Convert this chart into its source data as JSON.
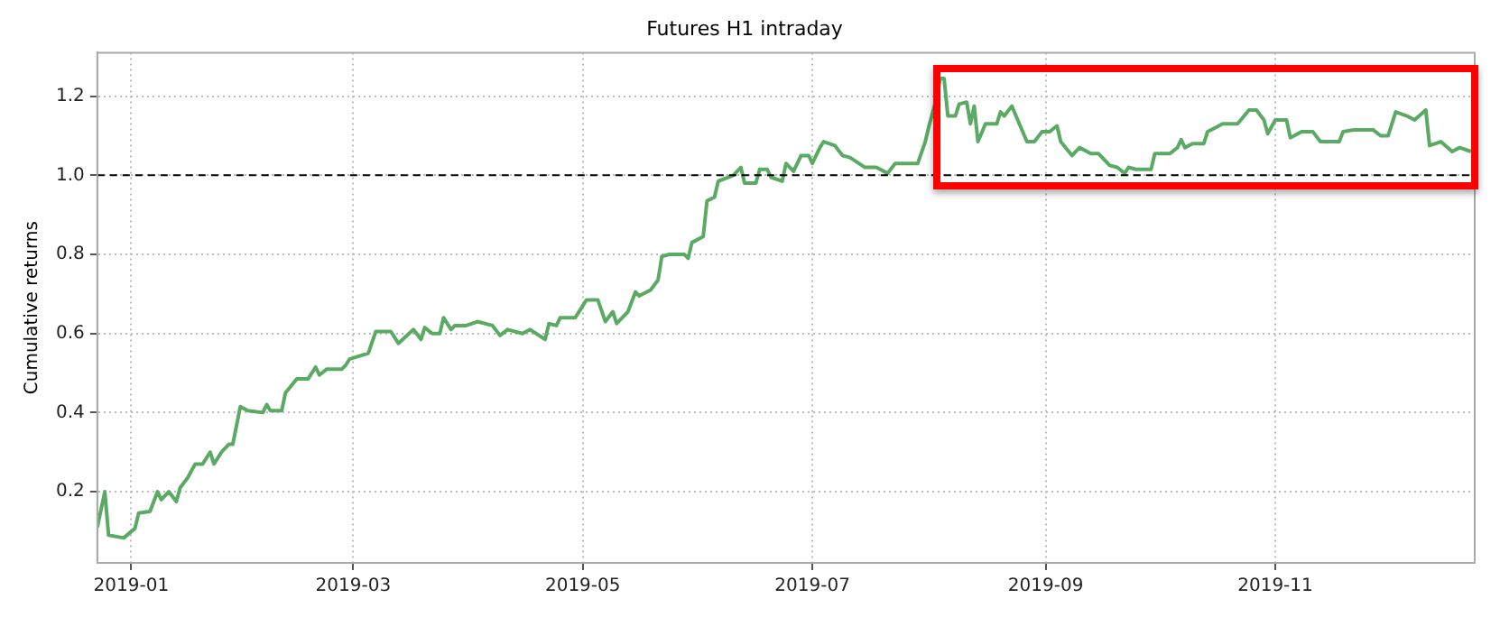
{
  "chart_data": {
    "type": "line",
    "title": "Futures H1 intraday",
    "ylabel": "Cumulative returns",
    "xlim": [
      "2018-12-23",
      "2019-12-24"
    ],
    "xticks": [
      "2019-01",
      "2019-03",
      "2019-05",
      "2019-07",
      "2019-09",
      "2019-11"
    ],
    "ylim": [
      0.02,
      1.31
    ],
    "yticks": [
      {
        "value": 0.2,
        "label": "0.2"
      },
      {
        "value": 0.4,
        "label": "0.4"
      },
      {
        "value": 0.6,
        "label": "0.6"
      },
      {
        "value": 0.8,
        "label": "0.8"
      },
      {
        "value": 1,
        "label": "1.0"
      },
      {
        "value": 1.2,
        "label": "1.2"
      }
    ],
    "grid": true,
    "marker": "none",
    "line_style": "solid",
    "ref_lines": [
      {
        "axis": "y",
        "value": 1.0,
        "label": null,
        "color": "#000000",
        "line_style": "dashed"
      }
    ],
    "x": [
      "2018-12-23",
      "2018-12-25",
      "2018-12-26",
      "2018-12-30",
      "2019-01-02",
      "2019-01-03",
      "2019-01-06",
      "2019-01-08",
      "2019-01-09",
      "2019-01-11",
      "2019-01-13",
      "2019-01-14",
      "2019-01-16",
      "2019-01-18",
      "2019-01-20",
      "2019-01-22",
      "2019-01-23",
      "2019-01-25",
      "2019-01-27",
      "2019-01-28",
      "2019-01-30",
      "2019-02-01",
      "2019-02-05",
      "2019-02-06",
      "2019-02-07",
      "2019-02-10",
      "2019-02-11",
      "2019-02-14",
      "2019-02-17",
      "2019-02-19",
      "2019-02-20",
      "2019-02-22",
      "2019-02-26",
      "2019-02-27",
      "2019-02-28",
      "2019-03-05",
      "2019-03-07",
      "2019-03-11",
      "2019-03-13",
      "2019-03-17",
      "2019-03-19",
      "2019-03-20",
      "2019-03-22",
      "2019-03-24",
      "2019-03-25",
      "2019-03-27",
      "2019-03-28",
      "2019-03-31",
      "2019-04-03",
      "2019-04-07",
      "2019-04-09",
      "2019-04-11",
      "2019-04-15",
      "2019-04-17",
      "2019-04-21",
      "2019-04-22",
      "2019-04-24",
      "2019-04-25",
      "2019-04-29",
      "2019-05-02",
      "2019-05-05",
      "2019-05-07",
      "2019-05-09",
      "2019-05-10",
      "2019-05-13",
      "2019-05-15",
      "2019-05-16",
      "2019-05-19",
      "2019-05-21",
      "2019-05-22",
      "2019-05-24",
      "2019-05-28",
      "2019-05-29",
      "2019-05-30",
      "2019-06-02",
      "2019-06-03",
      "2019-06-05",
      "2019-06-06",
      "2019-06-10",
      "2019-06-12",
      "2019-06-13",
      "2019-06-16",
      "2019-06-17",
      "2019-06-19",
      "2019-06-20",
      "2019-06-23",
      "2019-06-24",
      "2019-06-26",
      "2019-06-28",
      "2019-06-30",
      "2019-07-01",
      "2019-07-03",
      "2019-07-04",
      "2019-07-07",
      "2019-07-09",
      "2019-07-11",
      "2019-07-15",
      "2019-07-18",
      "2019-07-21",
      "2019-07-23",
      "2019-07-25",
      "2019-07-29",
      "2019-07-31",
      "2019-08-01",
      "2019-08-03",
      "2019-08-04",
      "2019-08-05",
      "2019-08-06",
      "2019-08-08",
      "2019-08-09",
      "2019-08-11",
      "2019-08-12",
      "2019-08-13",
      "2019-08-14",
      "2019-08-16",
      "2019-08-19",
      "2019-08-20",
      "2019-08-21",
      "2019-08-23",
      "2019-08-27",
      "2019-08-29",
      "2019-08-31",
      "2019-09-02",
      "2019-09-04",
      "2019-09-05",
      "2019-09-08",
      "2019-09-10",
      "2019-09-13",
      "2019-09-15",
      "2019-09-18",
      "2019-09-20",
      "2019-09-22",
      "2019-09-23",
      "2019-09-25",
      "2019-09-29",
      "2019-09-30",
      "2019-10-04",
      "2019-10-06",
      "2019-10-07",
      "2019-10-08",
      "2019-10-10",
      "2019-10-13",
      "2019-10-14",
      "2019-10-16",
      "2019-10-18",
      "2019-10-20",
      "2019-10-22",
      "2019-10-25",
      "2019-10-27",
      "2019-10-29",
      "2019-10-30",
      "2019-11-01",
      "2019-11-04",
      "2019-11-05",
      "2019-11-08",
      "2019-11-11",
      "2019-11-13",
      "2019-11-18",
      "2019-11-19",
      "2019-11-22",
      "2019-11-27",
      "2019-11-29",
      "2019-12-01",
      "2019-12-03",
      "2019-12-06",
      "2019-12-08",
      "2019-12-11",
      "2019-12-12",
      "2019-12-15",
      "2019-12-18",
      "2019-12-20",
      "2019-12-23"
    ],
    "series": [
      {
        "color": "#5aaa64",
        "values": [
          0.11,
          0.2,
          0.09,
          0.083,
          0.107,
          0.146,
          0.15,
          0.2,
          0.18,
          0.2,
          0.175,
          0.21,
          0.235,
          0.27,
          0.27,
          0.3,
          0.27,
          0.3,
          0.32,
          0.32,
          0.415,
          0.405,
          0.4,
          0.42,
          0.405,
          0.405,
          0.45,
          0.485,
          0.485,
          0.515,
          0.495,
          0.51,
          0.51,
          0.52,
          0.535,
          0.55,
          0.605,
          0.605,
          0.575,
          0.61,
          0.585,
          0.615,
          0.6,
          0.6,
          0.64,
          0.61,
          0.62,
          0.62,
          0.63,
          0.62,
          0.595,
          0.61,
          0.6,
          0.61,
          0.585,
          0.625,
          0.62,
          0.64,
          0.64,
          0.685,
          0.685,
          0.63,
          0.655,
          0.625,
          0.655,
          0.705,
          0.695,
          0.71,
          0.735,
          0.795,
          0.8,
          0.8,
          0.79,
          0.83,
          0.845,
          0.935,
          0.945,
          0.985,
          1.0,
          1.02,
          0.98,
          0.98,
          1.015,
          1.015,
          0.995,
          0.985,
          1.03,
          1.01,
          1.05,
          1.05,
          1.03,
          1.07,
          1.085,
          1.075,
          1.05,
          1.045,
          1.02,
          1.02,
          1.005,
          1.03,
          1.03,
          1.03,
          1.085,
          1.125,
          1.195,
          1.245,
          1.245,
          1.15,
          1.15,
          1.18,
          1.185,
          1.13,
          1.175,
          1.085,
          1.13,
          1.13,
          1.16,
          1.15,
          1.175,
          1.085,
          1.085,
          1.11,
          1.11,
          1.125,
          1.085,
          1.05,
          1.07,
          1.055,
          1.055,
          1.025,
          1.02,
          1.005,
          1.02,
          1.015,
          1.015,
          1.055,
          1.055,
          1.07,
          1.09,
          1.07,
          1.08,
          1.08,
          1.11,
          1.12,
          1.13,
          1.13,
          1.13,
          1.165,
          1.165,
          1.14,
          1.105,
          1.14,
          1.14,
          1.095,
          1.11,
          1.11,
          1.085,
          1.085,
          1.11,
          1.115,
          1.115,
          1.1,
          1.1,
          1.16,
          1.15,
          1.14,
          1.165,
          1.075,
          1.085,
          1.06,
          1.07,
          1.06
        ]
      }
    ]
  }
}
